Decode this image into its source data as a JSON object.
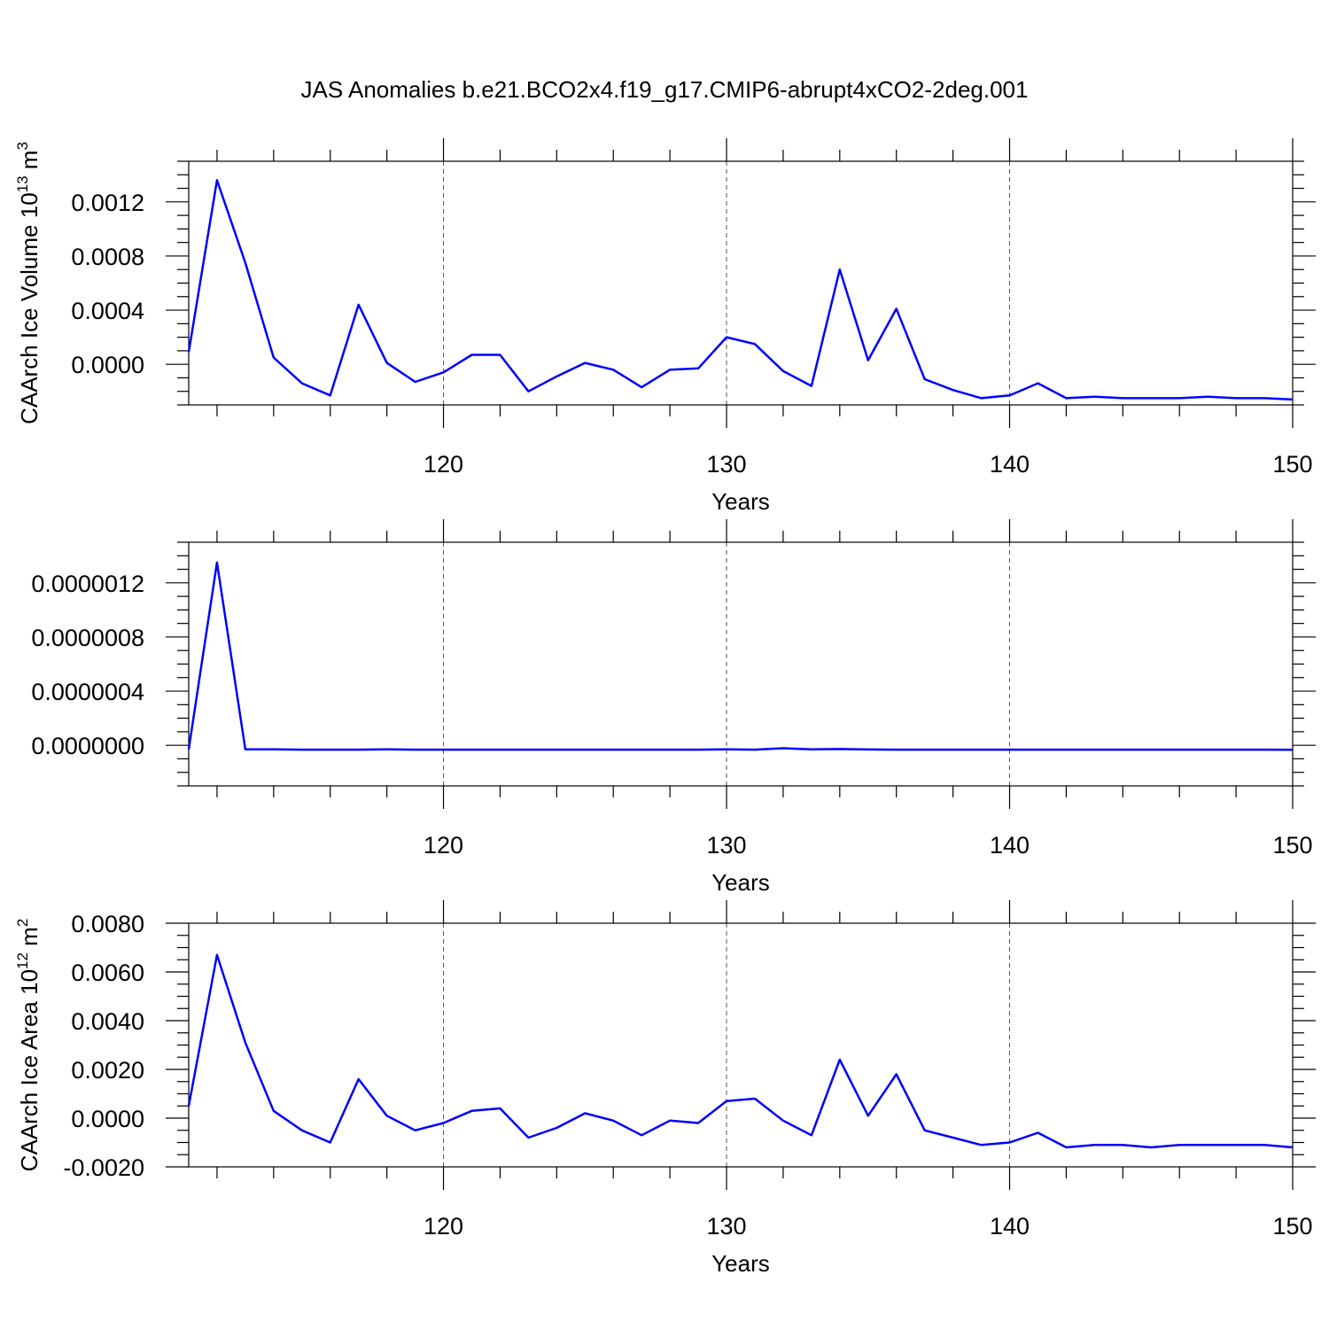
{
  "title": "JAS Anomalies b.e21.BCO2x4.f19_g17.CMIP6-abrupt4xCO2-2deg.001",
  "colors": {
    "series": "#0000ff",
    "axis": "#000000",
    "grid": "#555555"
  },
  "chart_data": [
    {
      "type": "line",
      "xlabel": "Years",
      "ylabel": "CAArch Ice Volume 10",
      "ylabel_exp": "13",
      "ylabel_unit": " m",
      "ylabel_unit_exp": "3",
      "xlim": [
        111,
        150
      ],
      "ylim": [
        -0.0003,
        0.0015
      ],
      "grid_x": [
        120,
        130,
        140
      ],
      "x_ticks": [
        120,
        130,
        140,
        150
      ],
      "y_ticks": [
        {
          "value": 0.0,
          "label": "0.0000"
        },
        {
          "value": 0.0004,
          "label": "0.0004"
        },
        {
          "value": 0.0008,
          "label": "0.0008"
        },
        {
          "value": 0.0012,
          "label": "0.0012"
        }
      ],
      "y_minor_step": 0.0001,
      "series": [
        {
          "x": [
            111,
            112,
            113,
            114,
            115,
            116,
            117,
            118,
            119,
            120,
            121,
            122,
            123,
            124,
            125,
            126,
            127,
            128,
            129,
            130,
            131,
            132,
            133,
            134,
            135,
            136,
            137,
            138,
            139,
            140,
            141,
            142,
            143,
            144,
            145,
            146,
            147,
            148,
            149,
            150
          ],
          "values": [
            9e-05,
            0.00136,
            0.00075,
            5e-05,
            -0.00014,
            -0.00023,
            0.00044,
            1e-05,
            -0.00013,
            -6e-05,
            7e-05,
            7e-05,
            -0.0002,
            -9e-05,
            1e-05,
            -4e-05,
            -0.00017,
            -4e-05,
            -3e-05,
            0.0002,
            0.00015,
            -5e-05,
            -0.00016,
            0.0007,
            3e-05,
            0.00041,
            -0.00011,
            -0.00019,
            -0.00025,
            -0.00023,
            -0.00014,
            -0.00025,
            -0.00024,
            -0.00025,
            -0.00025,
            -0.00025,
            -0.00024,
            -0.00025,
            -0.00025,
            -0.00026
          ]
        }
      ]
    },
    {
      "type": "line",
      "xlabel": "Years",
      "ylabel": "",
      "xlim": [
        111,
        150
      ],
      "ylim": [
        -3e-07,
        1.5e-06
      ],
      "grid_x": [
        120,
        130,
        140
      ],
      "x_ticks": [
        120,
        130,
        140,
        150
      ],
      "y_ticks": [
        {
          "value": 0.0,
          "label": "0.0000000"
        },
        {
          "value": 4e-07,
          "label": "0.0000004"
        },
        {
          "value": 8e-07,
          "label": "0.0000008"
        },
        {
          "value": 1.2e-06,
          "label": "0.0000012"
        }
      ],
      "y_minor_step": 1e-07,
      "series": [
        {
          "x": [
            111,
            112,
            113,
            114,
            115,
            116,
            117,
            118,
            119,
            120,
            121,
            122,
            123,
            124,
            125,
            126,
            127,
            128,
            129,
            130,
            131,
            132,
            133,
            134,
            135,
            136,
            137,
            138,
            139,
            140,
            141,
            142,
            143,
            144,
            145,
            146,
            147,
            148,
            149,
            150
          ],
          "values": [
            -3e-08,
            1.35e-06,
            -3e-08,
            -3e-08,
            -3.2e-08,
            -3.2e-08,
            -3.2e-08,
            -3e-08,
            -3.2e-08,
            -3.2e-08,
            -3.2e-08,
            -3.2e-08,
            -3.2e-08,
            -3.2e-08,
            -3.2e-08,
            -3.2e-08,
            -3.2e-08,
            -3.2e-08,
            -3.2e-08,
            -3e-08,
            -3.2e-08,
            -2.2e-08,
            -3e-08,
            -2.8e-08,
            -3.1e-08,
            -3.2e-08,
            -3.2e-08,
            -3.2e-08,
            -3.2e-08,
            -3.2e-08,
            -3.2e-08,
            -3.2e-08,
            -3.2e-08,
            -3.2e-08,
            -3.2e-08,
            -3.2e-08,
            -3.2e-08,
            -3.2e-08,
            -3.2e-08,
            -3.3e-08
          ]
        }
      ]
    },
    {
      "type": "line",
      "xlabel": "Years",
      "ylabel": "CAArch Ice Area 10",
      "ylabel_exp": "12",
      "ylabel_unit": " m",
      "ylabel_unit_exp": "2",
      "xlim": [
        111,
        150
      ],
      "ylim": [
        -0.002,
        0.008
      ],
      "grid_x": [
        120,
        130,
        140
      ],
      "x_ticks": [
        120,
        130,
        140,
        150
      ],
      "y_ticks": [
        {
          "value": -0.002,
          "label": "-0.0020"
        },
        {
          "value": 0.0,
          "label": "0.0000"
        },
        {
          "value": 0.002,
          "label": "0.0020"
        },
        {
          "value": 0.004,
          "label": "0.0040"
        },
        {
          "value": 0.006,
          "label": "0.0060"
        },
        {
          "value": 0.008,
          "label": "0.0080"
        }
      ],
      "y_minor_step": 0.0005,
      "series": [
        {
          "x": [
            111,
            112,
            113,
            114,
            115,
            116,
            117,
            118,
            119,
            120,
            121,
            122,
            123,
            124,
            125,
            126,
            127,
            128,
            129,
            130,
            131,
            132,
            133,
            134,
            135,
            136,
            137,
            138,
            139,
            140,
            141,
            142,
            143,
            144,
            145,
            146,
            147,
            148,
            149,
            150
          ],
          "values": [
            0.0005,
            0.0067,
            0.0031,
            0.0003,
            -0.0005,
            -0.001,
            0.0016,
            0.0001,
            -0.0005,
            -0.0002,
            0.0003,
            0.0004,
            -0.0008,
            -0.0004,
            0.0002,
            -0.0001,
            -0.0007,
            -0.0001,
            -0.0002,
            0.0007,
            0.0008,
            -0.0001,
            -0.0007,
            0.0024,
            0.0001,
            0.0018,
            -0.0005,
            -0.0008,
            -0.0011,
            -0.001,
            -0.0006,
            -0.0012,
            -0.0011,
            -0.0011,
            -0.0012,
            -0.0011,
            -0.0011,
            -0.0011,
            -0.0011,
            -0.0012
          ]
        }
      ]
    }
  ]
}
